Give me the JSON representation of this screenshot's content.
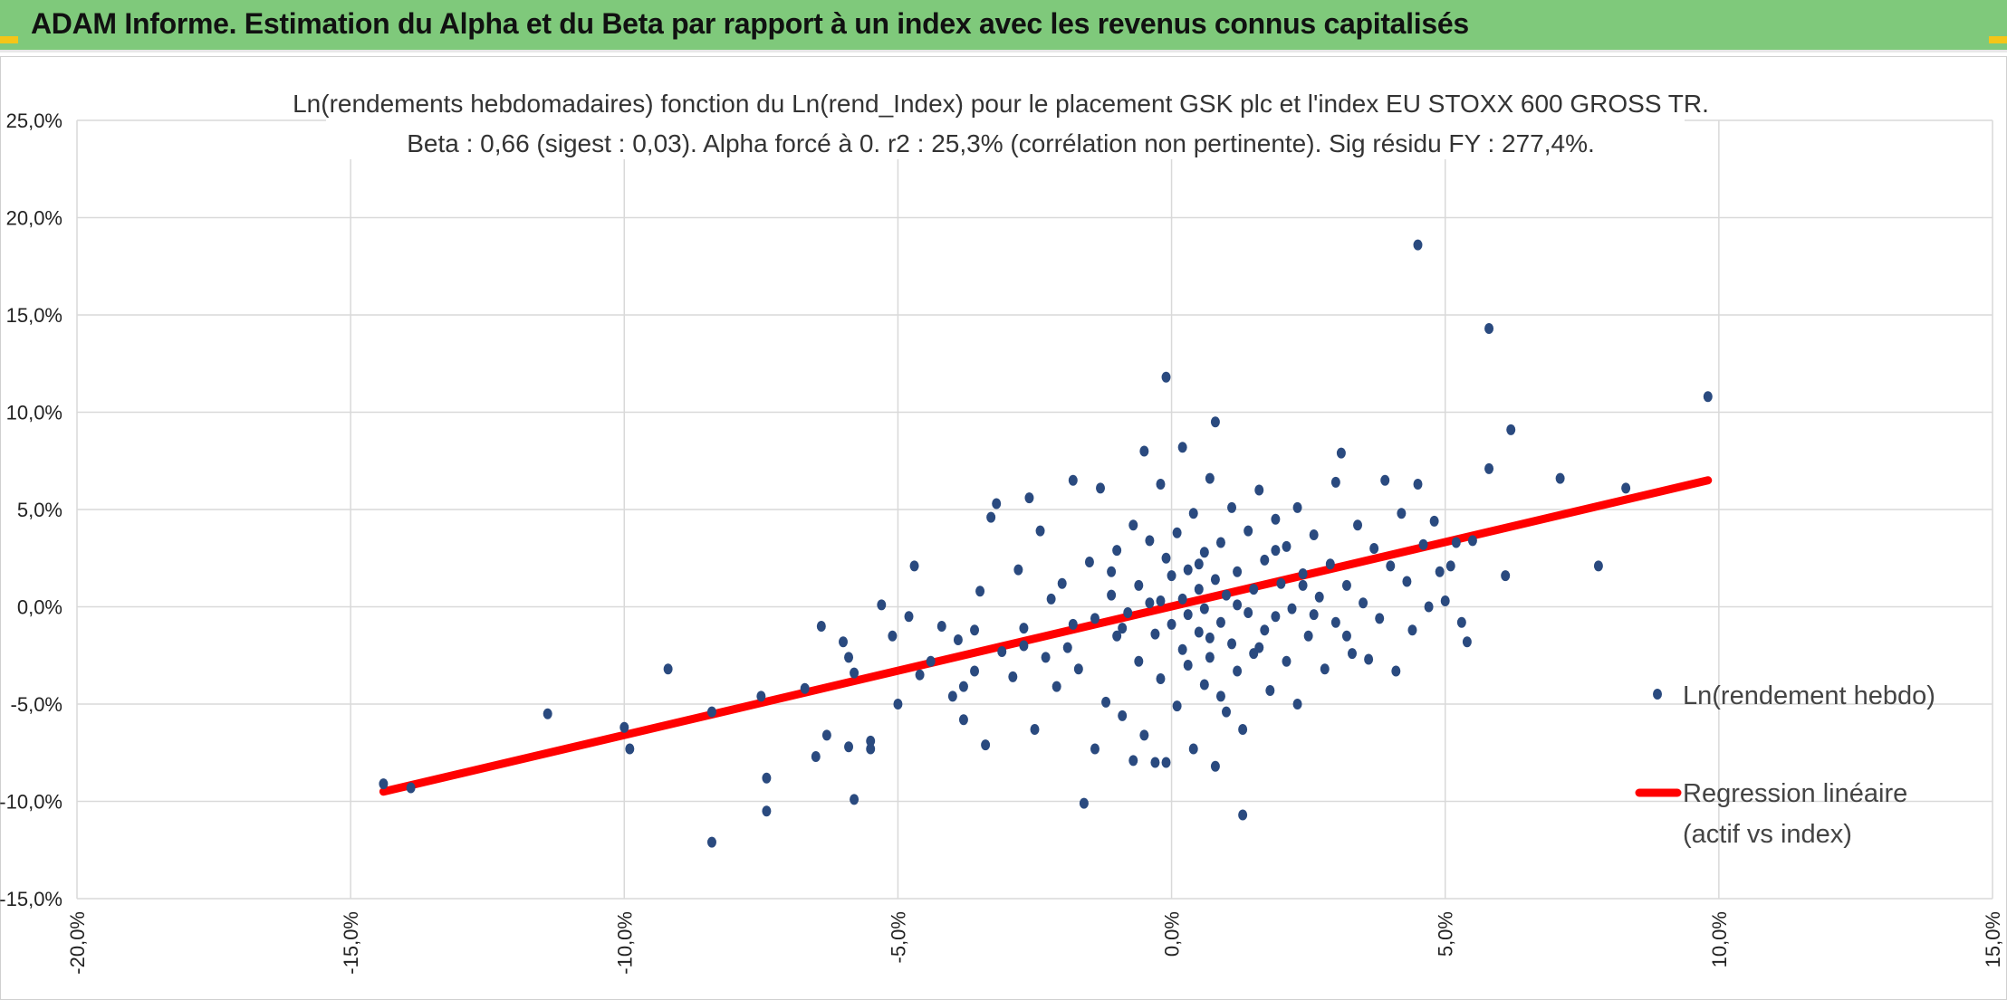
{
  "header": {
    "title": "ADAM Informe. Estimation du Alpha et du Beta par rapport à un index avec les revenus connus capitalisés",
    "background": "#7fc97b",
    "accent": "#f5c518"
  },
  "chart_data": {
    "type": "scatter",
    "title": "Ln(rendements hebdomadaires) fonction du Ln(rend_Index) pour le placement GSK plc et l'index EU STOXX 600 GROSS TR.",
    "subtitle": "Beta : 0,66 (sigest : 0,03). Alpha forcé à 0. r2 : 25,3% (corrélation non pertinente). Sig résidu FY : 277,4%.",
    "xlabel": "",
    "ylabel": "",
    "xlim": [
      -20,
      15
    ],
    "ylim": [
      -15,
      25
    ],
    "x_ticks": [
      "-20,0%",
      "-15,0%",
      "-10,0%",
      "-5,0%",
      "0,0%",
      "5,0%",
      "10,0%",
      "15,0%"
    ],
    "x_tick_values": [
      -20,
      -15,
      -10,
      -5,
      0,
      5,
      10,
      15
    ],
    "y_ticks": [
      "25,0%",
      "20,0%",
      "15,0%",
      "10,0%",
      "5,0%",
      "0,0%",
      "-5,0%",
      "-10,0%",
      "-15,0%"
    ],
    "y_tick_values": [
      25,
      20,
      15,
      10,
      5,
      0,
      -5,
      -10,
      -15
    ],
    "grid": true,
    "legend_position": "right",
    "series": [
      {
        "name": "Ln(rendement hebdo)",
        "kind": "scatter",
        "color": "#2a4a7f",
        "points": [
          [
            -14.4,
            -9.1
          ],
          [
            -13.9,
            -9.3
          ],
          [
            -11.4,
            -5.5
          ],
          [
            -10.0,
            -6.2
          ],
          [
            -9.9,
            -7.3
          ],
          [
            -9.2,
            -3.2
          ],
          [
            -8.4,
            -12.1
          ],
          [
            -8.4,
            -5.4
          ],
          [
            -7.4,
            -8.8
          ],
          [
            -7.4,
            -10.5
          ],
          [
            -7.5,
            -4.6
          ],
          [
            -6.7,
            -4.2
          ],
          [
            -6.5,
            -7.7
          ],
          [
            -6.3,
            -6.6
          ],
          [
            -6.4,
            -1.0
          ],
          [
            -6.0,
            -1.8
          ],
          [
            -5.9,
            -2.6
          ],
          [
            -5.9,
            -7.2
          ],
          [
            -5.8,
            -9.9
          ],
          [
            -5.8,
            -3.4
          ],
          [
            -5.5,
            -6.9
          ],
          [
            -5.5,
            -7.3
          ],
          [
            -5.3,
            0.1
          ],
          [
            -5.1,
            -1.5
          ],
          [
            -5.0,
            -5.0
          ],
          [
            -4.8,
            -0.5
          ],
          [
            -4.7,
            2.1
          ],
          [
            -4.6,
            -3.5
          ],
          [
            -4.4,
            -2.8
          ],
          [
            -4.2,
            -1.0
          ],
          [
            -4.0,
            -4.6
          ],
          [
            -3.9,
            -1.7
          ],
          [
            -3.8,
            -4.1
          ],
          [
            -3.8,
            -5.8
          ],
          [
            -3.6,
            -1.2
          ],
          [
            -3.5,
            0.8
          ],
          [
            -3.4,
            -7.1
          ],
          [
            -3.3,
            4.6
          ],
          [
            -3.2,
            5.3
          ],
          [
            -3.1,
            -2.3
          ],
          [
            -2.9,
            -3.6
          ],
          [
            -2.8,
            1.9
          ],
          [
            -2.7,
            -1.1
          ],
          [
            -2.6,
            5.6
          ],
          [
            -2.5,
            -6.3
          ],
          [
            -2.4,
            3.9
          ],
          [
            -2.3,
            -2.6
          ],
          [
            -2.2,
            0.4
          ],
          [
            -2.1,
            -4.1
          ],
          [
            -2.0,
            1.2
          ],
          [
            -1.9,
            -2.1
          ],
          [
            -1.8,
            6.5
          ],
          [
            -1.7,
            -3.2
          ],
          [
            -1.6,
            -10.1
          ],
          [
            -1.5,
            2.3
          ],
          [
            -1.4,
            -7.3
          ],
          [
            -1.4,
            -0.6
          ],
          [
            -1.3,
            6.1
          ],
          [
            -1.2,
            -4.9
          ],
          [
            -1.1,
            0.6
          ],
          [
            -1.0,
            -1.5
          ],
          [
            -1.0,
            2.9
          ],
          [
            -0.9,
            -5.6
          ],
          [
            -0.8,
            -0.3
          ],
          [
            -0.7,
            4.2
          ],
          [
            -0.7,
            -7.9
          ],
          [
            -0.6,
            1.1
          ],
          [
            -0.6,
            -2.8
          ],
          [
            -0.5,
            -6.6
          ],
          [
            -0.4,
            0.2
          ],
          [
            -0.5,
            8.0
          ],
          [
            -0.3,
            -1.4
          ],
          [
            -0.3,
            -8.0
          ],
          [
            -0.2,
            6.3
          ],
          [
            -0.2,
            -3.7
          ],
          [
            -0.1,
            2.5
          ],
          [
            -0.1,
            -8.0
          ],
          [
            -0.1,
            11.8
          ],
          [
            0.0,
            -0.9
          ],
          [
            0.0,
            1.6
          ],
          [
            0.1,
            -5.1
          ],
          [
            0.1,
            3.8
          ],
          [
            0.2,
            0.4
          ],
          [
            0.2,
            -2.2
          ],
          [
            0.2,
            8.2
          ],
          [
            0.3,
            -0.4
          ],
          [
            0.3,
            1.9
          ],
          [
            0.4,
            -7.3
          ],
          [
            0.4,
            4.8
          ],
          [
            0.5,
            -1.3
          ],
          [
            0.5,
            0.9
          ],
          [
            0.6,
            -4.0
          ],
          [
            0.6,
            2.8
          ],
          [
            0.6,
            -0.1
          ],
          [
            0.7,
            6.6
          ],
          [
            0.7,
            -2.6
          ],
          [
            0.8,
            1.4
          ],
          [
            0.8,
            -8.2
          ],
          [
            0.8,
            9.5
          ],
          [
            0.9,
            -0.8
          ],
          [
            0.9,
            3.3
          ],
          [
            1.0,
            -5.4
          ],
          [
            1.0,
            0.6
          ],
          [
            1.1,
            -1.9
          ],
          [
            1.1,
            5.1
          ],
          [
            1.2,
            -3.3
          ],
          [
            1.2,
            1.8
          ],
          [
            1.3,
            -6.3
          ],
          [
            1.3,
            -10.7
          ],
          [
            1.4,
            -0.3
          ],
          [
            1.4,
            3.9
          ],
          [
            1.5,
            -2.4
          ],
          [
            1.5,
            0.9
          ],
          [
            1.6,
            6.0
          ],
          [
            1.7,
            -1.2
          ],
          [
            1.7,
            2.4
          ],
          [
            1.8,
            -4.3
          ],
          [
            1.9,
            -0.5
          ],
          [
            1.9,
            4.5
          ],
          [
            2.0,
            1.2
          ],
          [
            2.1,
            -2.8
          ],
          [
            2.1,
            3.1
          ],
          [
            2.2,
            -0.1
          ],
          [
            2.3,
            5.1
          ],
          [
            2.3,
            -5.0
          ],
          [
            2.4,
            1.7
          ],
          [
            2.5,
            -1.5
          ],
          [
            2.6,
            3.7
          ],
          [
            2.7,
            0.5
          ],
          [
            2.8,
            -3.2
          ],
          [
            2.9,
            2.2
          ],
          [
            3.0,
            6.4
          ],
          [
            3.0,
            -0.8
          ],
          [
            3.1,
            7.9
          ],
          [
            3.2,
            1.1
          ],
          [
            3.3,
            -2.4
          ],
          [
            3.4,
            4.2
          ],
          [
            3.5,
            0.2
          ],
          [
            3.6,
            -2.7
          ],
          [
            3.7,
            3.0
          ],
          [
            3.8,
            -0.6
          ],
          [
            3.9,
            6.5
          ],
          [
            4.0,
            2.1
          ],
          [
            4.1,
            -3.3
          ],
          [
            4.2,
            4.8
          ],
          [
            4.3,
            1.3
          ],
          [
            4.4,
            -1.2
          ],
          [
            4.5,
            6.3
          ],
          [
            4.5,
            18.6
          ],
          [
            4.6,
            3.2
          ],
          [
            4.7,
            0.0
          ],
          [
            4.8,
            4.4
          ],
          [
            4.9,
            1.8
          ],
          [
            5.0,
            0.3
          ],
          [
            5.1,
            2.1
          ],
          [
            5.2,
            3.3
          ],
          [
            5.3,
            -0.8
          ],
          [
            5.4,
            -1.8
          ],
          [
            5.5,
            3.4
          ],
          [
            5.8,
            7.1
          ],
          [
            5.8,
            14.3
          ],
          [
            6.1,
            1.6
          ],
          [
            6.2,
            9.1
          ],
          [
            7.1,
            6.6
          ],
          [
            7.8,
            2.1
          ],
          [
            8.3,
            6.1
          ],
          [
            9.8,
            10.8
          ],
          [
            0.3,
            -3.0
          ],
          [
            -1.1,
            1.8
          ],
          [
            0.9,
            -4.6
          ],
          [
            1.6,
            -2.1
          ],
          [
            -0.4,
            3.4
          ],
          [
            2.6,
            -0.4
          ],
          [
            -1.8,
            -0.9
          ],
          [
            0.5,
            2.2
          ],
          [
            1.2,
            0.1
          ],
          [
            -2.7,
            -2.0
          ],
          [
            3.2,
            -1.5
          ],
          [
            -0.9,
            -1.1
          ],
          [
            1.9,
            2.9
          ],
          [
            -3.6,
            -3.3
          ],
          [
            -0.2,
            0.3
          ],
          [
            0.7,
            -1.6
          ],
          [
            2.4,
            1.1
          ]
        ]
      },
      {
        "name": "Regression linéaire\n(actif vs index)",
        "kind": "line",
        "color": "#ff0000",
        "points": [
          [
            -14.4,
            -9.5
          ],
          [
            9.8,
            6.5
          ]
        ]
      }
    ],
    "legend": [
      {
        "label_lines": [
          "Ln(rendement hebdo)"
        ],
        "marker": "dot"
      },
      {
        "label_lines": [
          "Regression linéaire",
          "(actif vs index)"
        ],
        "marker": "line"
      }
    ]
  }
}
